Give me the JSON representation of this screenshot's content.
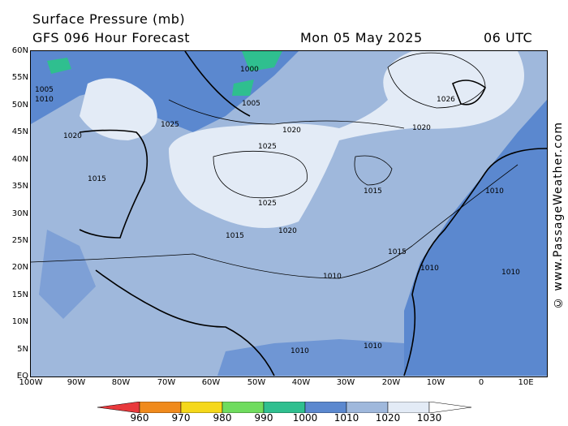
{
  "header": {
    "title": "Surface Pressure (mb)",
    "subtitle": "GFS 096 Hour Forecast",
    "date": "Mon 05 May 2025",
    "time": "06 UTC"
  },
  "credit": "© www.PassageWeather.com",
  "axes": {
    "lat_labels": [
      "60N",
      "55N",
      "50N",
      "45N",
      "40N",
      "35N",
      "30N",
      "25N",
      "20N",
      "15N",
      "10N",
      "5N",
      "EQ"
    ],
    "lon_labels": [
      "100W",
      "90W",
      "80W",
      "70W",
      "60W",
      "50W",
      "40W",
      "30W",
      "20W",
      "10W",
      "0",
      "10E"
    ]
  },
  "isobar_labels": [
    "1000",
    "1005",
    "1010",
    "1015",
    "1020",
    "1025",
    "1026"
  ],
  "legend": {
    "values": [
      "960",
      "970",
      "980",
      "990",
      "1000",
      "1010",
      "1020",
      "1030"
    ],
    "colors": [
      "#e8393c",
      "#f08a1c",
      "#f5d81a",
      "#6fdc5e",
      "#2fbf8f",
      "#5b88cf",
      "#9fb8dc",
      "#e3ebf6",
      "#ffffff"
    ]
  },
  "colors": {
    "ocean_1010_1020": "#9fb8dc",
    "low_1000_1010": "#5b88cf",
    "high_1020_1030": "#e3ebf6",
    "deep_low_990_1000": "#2fbf8f"
  }
}
